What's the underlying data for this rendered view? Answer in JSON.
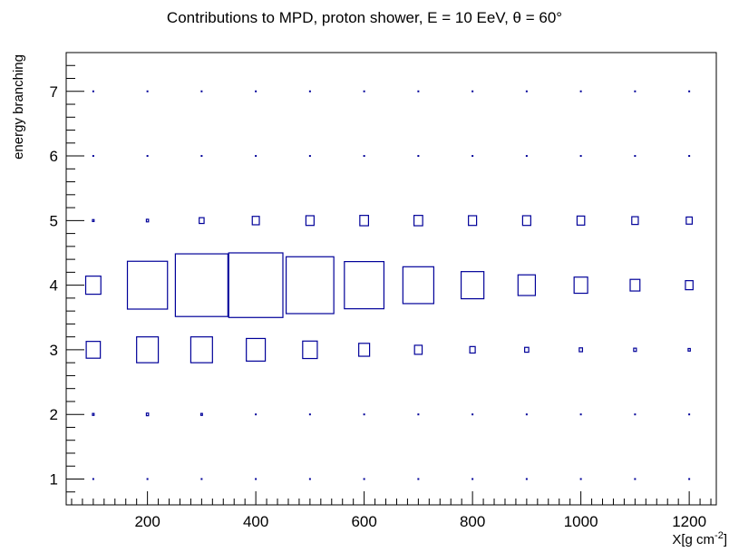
{
  "chart_data": {
    "type": "box",
    "title": "Contributions to MPD, proton shower, E = 10 EeV,  θ = 60°",
    "xlabel": "X[g cm",
    "xlabel_exp": "-2",
    "xlabel_close": "]",
    "ylabel": "energy branching",
    "xlim": [
      50,
      1250
    ],
    "ylim": [
      0.6,
      7.6
    ],
    "x_ticks": [
      "200",
      "400",
      "600",
      "800",
      "1000",
      "1200"
    ],
    "y_ticks": [
      "1",
      "2",
      "3",
      "4",
      "5",
      "6",
      "7"
    ],
    "x_bins": [
      100,
      200,
      300,
      400,
      500,
      600,
      700,
      800,
      900,
      1000,
      1100,
      1200
    ],
    "y_bins": [
      1,
      2,
      3,
      4,
      5,
      6,
      7
    ],
    "box_color": "#000099",
    "values": [
      [
        0.008,
        0.008,
        0.008,
        0.008,
        0.008,
        0.008,
        0.008,
        0.008,
        0.008,
        0.008,
        0.008,
        0.008
      ],
      [
        0.03,
        0.04,
        0.03,
        0.015,
        0.01,
        0.01,
        0.008,
        0.008,
        0.008,
        0.008,
        0.008,
        0.008
      ],
      [
        0.26,
        0.4,
        0.4,
        0.35,
        0.27,
        0.2,
        0.14,
        0.1,
        0.075,
        0.06,
        0.05,
        0.04
      ],
      [
        0.28,
        0.74,
        0.97,
        1.0,
        0.88,
        0.73,
        0.57,
        0.42,
        0.32,
        0.25,
        0.18,
        0.14
      ],
      [
        0.03,
        0.04,
        0.09,
        0.13,
        0.15,
        0.16,
        0.16,
        0.15,
        0.15,
        0.14,
        0.12,
        0.11
      ],
      [
        0.008,
        0.008,
        0.008,
        0.008,
        0.008,
        0.008,
        0.008,
        0.008,
        0.008,
        0.008,
        0.008,
        0.008
      ],
      [
        0.008,
        0.008,
        0.008,
        0.008,
        0.008,
        0.008,
        0.008,
        0.008,
        0.008,
        0.008,
        0.008,
        0.008
      ]
    ]
  }
}
